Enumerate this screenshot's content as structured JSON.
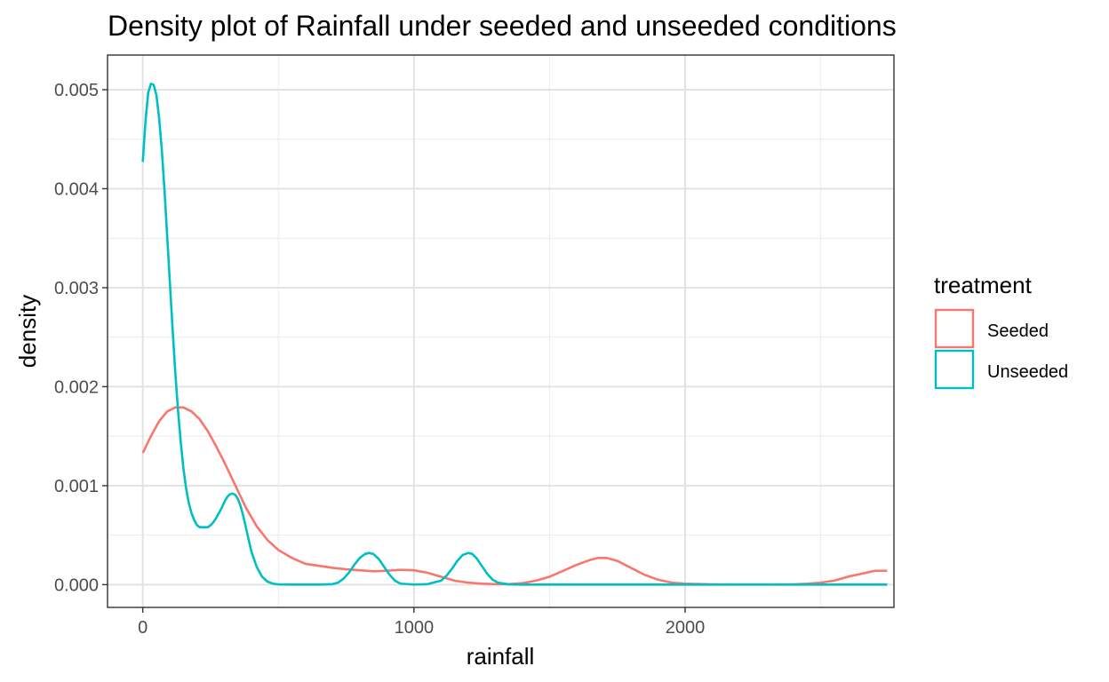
{
  "chart_data": {
    "type": "line",
    "title": "Density plot of Rainfall under seeded and unseeded conditions",
    "xlabel": "rainfall",
    "ylabel": "density",
    "xlim": [
      -130,
      2770
    ],
    "ylim": [
      -0.00023,
      0.00535
    ],
    "x_ticks": [
      0,
      1000,
      2000
    ],
    "x_tick_labels": [
      "0",
      "1000",
      "2000"
    ],
    "y_ticks": [
      0.0,
      0.001,
      0.002,
      0.003,
      0.004,
      0.005
    ],
    "y_tick_labels": [
      "0.000",
      "0.001",
      "0.002",
      "0.003",
      "0.004",
      "0.005"
    ],
    "grid": true,
    "legend": {
      "title": "treatment",
      "position": "right"
    },
    "series": [
      {
        "name": "Seeded",
        "color": "#F8766D",
        "x": [
          0,
          30,
          60,
          90,
          120,
          150,
          180,
          210,
          240,
          270,
          300,
          340,
          380,
          420,
          460,
          500,
          550,
          600,
          650,
          700,
          750,
          800,
          850,
          900,
          950,
          1000,
          1050,
          1100,
          1150,
          1200,
          1250,
          1300,
          1350,
          1400,
          1450,
          1500,
          1550,
          1600,
          1650,
          1680,
          1710,
          1750,
          1800,
          1850,
          1900,
          1950,
          2000,
          2100,
          2200,
          2300,
          2400,
          2450,
          2500,
          2550,
          2600,
          2650,
          2700,
          2745
        ],
        "y": [
          0.00133,
          0.0015,
          0.00165,
          0.00175,
          0.00179,
          0.00179,
          0.00175,
          0.00167,
          0.00155,
          0.0014,
          0.00124,
          0.00101,
          0.00078,
          0.00059,
          0.00045,
          0.00035,
          0.00027,
          0.00021,
          0.00019,
          0.00017,
          0.000155,
          0.000145,
          0.000135,
          0.00014,
          0.00015,
          0.000145,
          0.00012,
          8e-05,
          4e-05,
          2e-05,
          1e-05,
          5e-06,
          5e-06,
          1.5e-05,
          4e-05,
          8e-05,
          0.00014,
          0.0002,
          0.00025,
          0.00027,
          0.00027,
          0.00024,
          0.00017,
          0.0001,
          5e-05,
          2e-05,
          1e-05,
          3e-06,
          1e-06,
          1e-06,
          3e-06,
          1e-05,
          2e-05,
          4e-05,
          8e-05,
          0.00011,
          0.00014,
          0.00014
        ]
      },
      {
        "name": "Unseeded",
        "color": "#00BFC4",
        "x": [
          0,
          10,
          20,
          30,
          40,
          50,
          60,
          70,
          80,
          90,
          100,
          110,
          120,
          130,
          140,
          150,
          160,
          170,
          180,
          190,
          200,
          210,
          220,
          230,
          240,
          250,
          260,
          270,
          280,
          290,
          300,
          310,
          320,
          330,
          340,
          350,
          360,
          370,
          380,
          390,
          400,
          420,
          440,
          460,
          480,
          500,
          550,
          600,
          650,
          700,
          720,
          740,
          760,
          780,
          800,
          820,
          835,
          850,
          870,
          890,
          910,
          930,
          950,
          1000,
          1050,
          1100,
          1120,
          1140,
          1160,
          1180,
          1200,
          1215,
          1230,
          1250,
          1270,
          1290,
          1310,
          1350,
          1400,
          1500,
          1600,
          1800,
          2000,
          2200,
          2400,
          2600,
          2745
        ],
        "y": [
          0.00427,
          0.00468,
          0.00497,
          0.00506,
          0.00505,
          0.00495,
          0.00472,
          0.0044,
          0.00399,
          0.00352,
          0.00305,
          0.00258,
          0.00214,
          0.00176,
          0.00144,
          0.00117,
          0.00097,
          0.00082,
          0.00072,
          0.00065,
          0.0006,
          0.00058,
          0.00058,
          0.00058,
          0.00058,
          0.0006,
          0.00063,
          0.00067,
          0.00072,
          0.00077,
          0.00083,
          0.00088,
          0.00091,
          0.00092,
          0.00091,
          0.00087,
          0.0008,
          0.0007,
          0.00058,
          0.00046,
          0.00034,
          0.00018,
          8e-05,
          3e-05,
          1e-05,
          3e-06,
          0.0,
          0.0,
          0.0,
          5e-06,
          2e-05,
          6e-05,
          0.00012,
          0.0002,
          0.00027,
          0.00031,
          0.00032,
          0.00031,
          0.00026,
          0.00018,
          0.0001,
          4e-05,
          1e-05,
          1e-06,
          5e-06,
          4e-05,
          9e-05,
          0.00016,
          0.00024,
          0.0003,
          0.00032,
          0.00031,
          0.00027,
          0.00019,
          0.00011,
          5e-05,
          2e-05,
          3e-06,
          0.0,
          0.0,
          0.0,
          0.0,
          0.0,
          0.0,
          0.0,
          0.0,
          0.0
        ]
      }
    ]
  }
}
